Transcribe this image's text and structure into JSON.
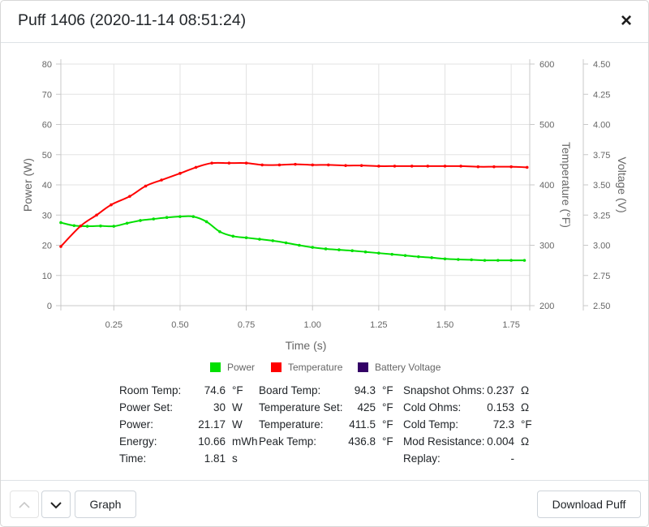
{
  "modal": {
    "title": "Puff 1406 (2020-11-14 08:51:24)",
    "close_label": "×"
  },
  "chart_data": {
    "type": "line",
    "x_label": "Time (s)",
    "x_ticks": [
      "0.25",
      "0.50",
      "0.75",
      "1.00",
      "1.25",
      "1.50",
      "1.75"
    ],
    "x_tick_values": [
      0.25,
      0.5,
      0.75,
      1.0,
      1.25,
      1.5,
      1.75
    ],
    "xlim": [
      0.05,
      1.82
    ],
    "grid": true,
    "legend_position": "bottom",
    "axes": {
      "power": {
        "label": "Power (W)",
        "range": [
          0,
          80
        ],
        "ticks": [
          "0",
          "10",
          "20",
          "30",
          "40",
          "50",
          "60",
          "70",
          "80"
        ],
        "tick_values": [
          0,
          10,
          20,
          30,
          40,
          50,
          60,
          70,
          80
        ],
        "side": "left"
      },
      "temperature": {
        "label": "Temperature (°F)",
        "range": [
          200,
          600
        ],
        "ticks": [
          "200",
          "300",
          "400",
          "500",
          "600"
        ],
        "tick_values": [
          200,
          300,
          400,
          500,
          600
        ],
        "side": "right"
      },
      "voltage": {
        "label": "Voltage (V)",
        "range": [
          2.5,
          4.5
        ],
        "ticks": [
          "2.50",
          "2.75",
          "3.00",
          "3.25",
          "3.50",
          "3.75",
          "4.00",
          "4.25",
          "4.50"
        ],
        "tick_values": [
          2.5,
          2.75,
          3.0,
          3.25,
          3.5,
          3.75,
          4.0,
          4.25,
          4.5
        ],
        "side": "right"
      }
    },
    "series": [
      {
        "name": "Power",
        "color": "#00e000",
        "axis": "power",
        "x": [
          0.05,
          0.1,
          0.15,
          0.2,
          0.25,
          0.3,
          0.35,
          0.4,
          0.45,
          0.5,
          0.55,
          0.6,
          0.65,
          0.7,
          0.75,
          0.8,
          0.85,
          0.9,
          0.95,
          1.0,
          1.05,
          1.1,
          1.15,
          1.2,
          1.25,
          1.3,
          1.35,
          1.4,
          1.45,
          1.5,
          1.55,
          1.6,
          1.65,
          1.7,
          1.75,
          1.8
        ],
        "values": [
          27.5,
          26.5,
          26.3,
          26.4,
          26.3,
          27.3,
          28.2,
          28.7,
          29.2,
          29.5,
          29.5,
          27.8,
          24.5,
          23.0,
          22.5,
          22.0,
          21.5,
          20.8,
          20.0,
          19.3,
          18.8,
          18.5,
          18.2,
          17.8,
          17.4,
          17.0,
          16.6,
          16.2,
          15.9,
          15.5,
          15.3,
          15.2,
          15.0,
          15.0,
          15.0,
          15.0
        ]
      },
      {
        "name": "Temperature",
        "color": "#ff0000",
        "axis": "temperature",
        "x": [
          0.05,
          0.125,
          0.185,
          0.24,
          0.31,
          0.37,
          0.43,
          0.5,
          0.56,
          0.62,
          0.685,
          0.75,
          0.81,
          0.875,
          0.935,
          1.0,
          1.06,
          1.125,
          1.185,
          1.25,
          1.31,
          1.375,
          1.435,
          1.5,
          1.56,
          1.625,
          1.685,
          1.75,
          1.81
        ],
        "values": [
          298,
          332,
          350,
          367,
          381,
          398,
          408,
          419,
          429,
          436,
          436,
          436,
          433,
          433,
          434,
          433,
          433,
          432,
          432,
          431,
          431,
          431,
          431,
          431,
          431,
          430,
          430,
          430,
          429
        ]
      },
      {
        "name": "Battery Voltage",
        "color": "#330066",
        "axis": "voltage",
        "x": [],
        "values": []
      }
    ]
  },
  "stats": {
    "col1": [
      {
        "label": "Room Temp:",
        "value": "74.6",
        "unit": "°F"
      },
      {
        "label": "Power Set:",
        "value": "30",
        "unit": "W"
      },
      {
        "label": "Power:",
        "value": "21.17",
        "unit": "W"
      },
      {
        "label": "Energy:",
        "value": "10.66",
        "unit": "mWh"
      },
      {
        "label": "Time:",
        "value": "1.81",
        "unit": "s"
      }
    ],
    "col2": [
      {
        "label": "Board Temp:",
        "value": "94.3",
        "unit": "°F"
      },
      {
        "label": "Temperature Set:",
        "value": "425",
        "unit": "°F"
      },
      {
        "label": "Temperature:",
        "value": "411.5",
        "unit": "°F"
      },
      {
        "label": "Peak Temp:",
        "value": "436.8",
        "unit": "°F"
      }
    ],
    "col3": [
      {
        "label": "Snapshot Ohms:",
        "value": "0.237",
        "unit": "Ω"
      },
      {
        "label": "Cold Ohms:",
        "value": "0.153",
        "unit": "Ω"
      },
      {
        "label": "Cold Temp:",
        "value": "72.3",
        "unit": "°F"
      },
      {
        "label": "Mod Resistance:",
        "value": "0.004",
        "unit": "Ω"
      },
      {
        "label": "Replay:",
        "value": "-",
        "unit": ""
      }
    ]
  },
  "footer": {
    "graph_label": "Graph",
    "download_label": "Download Puff",
    "up_icon": "chevron-up-icon",
    "down_icon": "chevron-down-icon"
  }
}
